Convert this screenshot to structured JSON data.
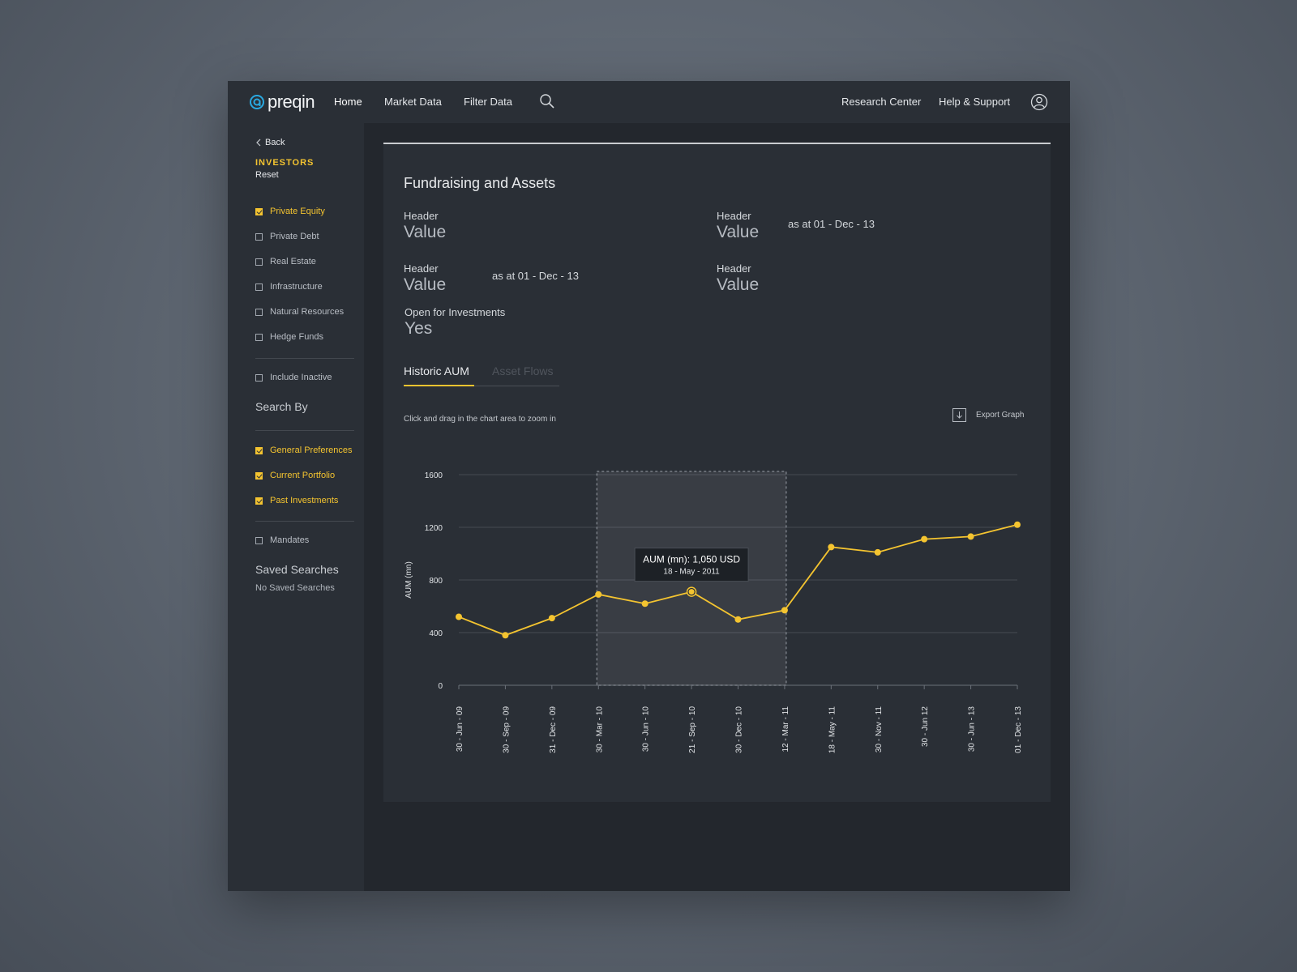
{
  "nav": {
    "logo_text": "preqin",
    "items": [
      "Home",
      "Market Data",
      "Filter Data"
    ],
    "right_items": [
      "Research Center",
      "Help & Support"
    ],
    "search_icon": "search-icon",
    "user_icon": "user-icon"
  },
  "sidebar": {
    "back_label": "Back",
    "section_title": "INVESTORS",
    "reset_label": "Reset",
    "asset_classes": [
      {
        "label": "Private Equity",
        "checked": true
      },
      {
        "label": "Private Debt",
        "checked": false
      },
      {
        "label": "Real Estate",
        "checked": false
      },
      {
        "label": "Infrastructure",
        "checked": false
      },
      {
        "label": "Natural Resources",
        "checked": false
      },
      {
        "label": "Hedge Funds",
        "checked": false
      }
    ],
    "include_inactive": {
      "label": "Include Inactive",
      "checked": false
    },
    "search_by_title": "Search By",
    "search_by": [
      {
        "label": "General Preferences",
        "checked": true
      },
      {
        "label": "Current Portfolio",
        "checked": true
      },
      {
        "label": "Past Investments",
        "checked": true
      }
    ],
    "mandates": {
      "label": "Mandates",
      "checked": false
    },
    "saved_searches_title": "Saved Searches",
    "saved_searches_empty": "No Saved Searches"
  },
  "main": {
    "title": "Fundraising and Assets",
    "fields": [
      {
        "header": "Header",
        "value": "Value",
        "as_at": ""
      },
      {
        "header": "Header",
        "value": "Value",
        "as_at": "as at 01 - Dec - 13"
      },
      {
        "header": "Header",
        "value": "Value",
        "as_at": "as at 01 - Dec - 13"
      },
      {
        "header": "Header",
        "value": "Value",
        "as_at": ""
      }
    ],
    "open_for_investments": {
      "header": "Open for Investments",
      "value": "Yes"
    },
    "tabs": [
      {
        "label": "Historic AUM",
        "active": true
      },
      {
        "label": "Asset Flows",
        "active": false
      }
    ],
    "hint": "Click and drag in the chart area to zoom in",
    "export_label": "Export Graph",
    "export_icon": "download-icon",
    "tooltip": {
      "title": "AUM (mn): 1,050 USD",
      "date": "18 - May - 2011"
    }
  },
  "colors": {
    "accent": "#f4c430",
    "panel": "#2a2f36",
    "background": "#23272d"
  },
  "chart_data": {
    "type": "line",
    "xlabel": "",
    "ylabel": "AUM (mn)",
    "ylim": [
      0,
      1600
    ],
    "yticks": [
      0,
      400,
      800,
      1200,
      1600
    ],
    "grid": true,
    "categories": [
      "30 - Jun - 09",
      "30 - Sep - 09",
      "31 - Dec - 09",
      "30 - Mar - 10",
      "30 - Jun - 10",
      "21 - Sep - 10",
      "30 - Dec - 10",
      "12 - Mar - 11",
      "18 - May - 11",
      "30 - Nov - 11",
      "30 - Jun 12",
      "30 - Jun - 13",
      "01 - Dec - 13"
    ],
    "series": [
      {
        "name": "",
        "values": [
          520,
          380,
          510,
          690,
          620,
          710,
          500,
          570,
          1050,
          1010,
          1110,
          1130,
          1220
        ]
      }
    ],
    "highlight_index": 5,
    "selection_range": [
      3,
      7
    ]
  }
}
